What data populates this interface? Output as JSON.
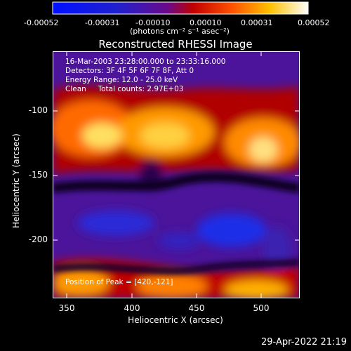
{
  "colorbar": {
    "tick_labels": [
      "-0.00052",
      "-0.00031",
      "-0.00010",
      "0.00010",
      "0.00031",
      "0.00052"
    ],
    "units_label": "(photons cm⁻² s⁻¹ asec⁻²)",
    "range": [
      -0.00052,
      0.00052
    ]
  },
  "plot": {
    "title": "Reconstructed RHESSI Image",
    "annotations": {
      "time_range": "16-Mar-2003 23:28:00.000 to 23:33:16.000",
      "detectors": "Detectors: 3F 4F 5F 6F 7F 8F, Att 0",
      "energy_range": "Energy Range: 12.0 - 25.0 keV",
      "method": "Clean     Total counts: 2.97E+03",
      "peak": "Position of Peak = [420,-121]"
    },
    "x_axis": {
      "label": "Heliocentric X (arcsec)",
      "ticks": [
        "350",
        "400",
        "450",
        "500"
      ],
      "range": [
        340,
        530
      ]
    },
    "y_axis": {
      "label": "Heliocentric Y (arcsec)",
      "ticks": [
        "-100",
        "-150",
        "-200"
      ],
      "range": [
        -255,
        -65
      ]
    }
  },
  "footer": {
    "timestamp": "29-Apr-2022 21:19"
  },
  "colors": {
    "background": "#000000",
    "low": "#0000ff",
    "mid": "#4a148c",
    "high": "#ffffff"
  }
}
